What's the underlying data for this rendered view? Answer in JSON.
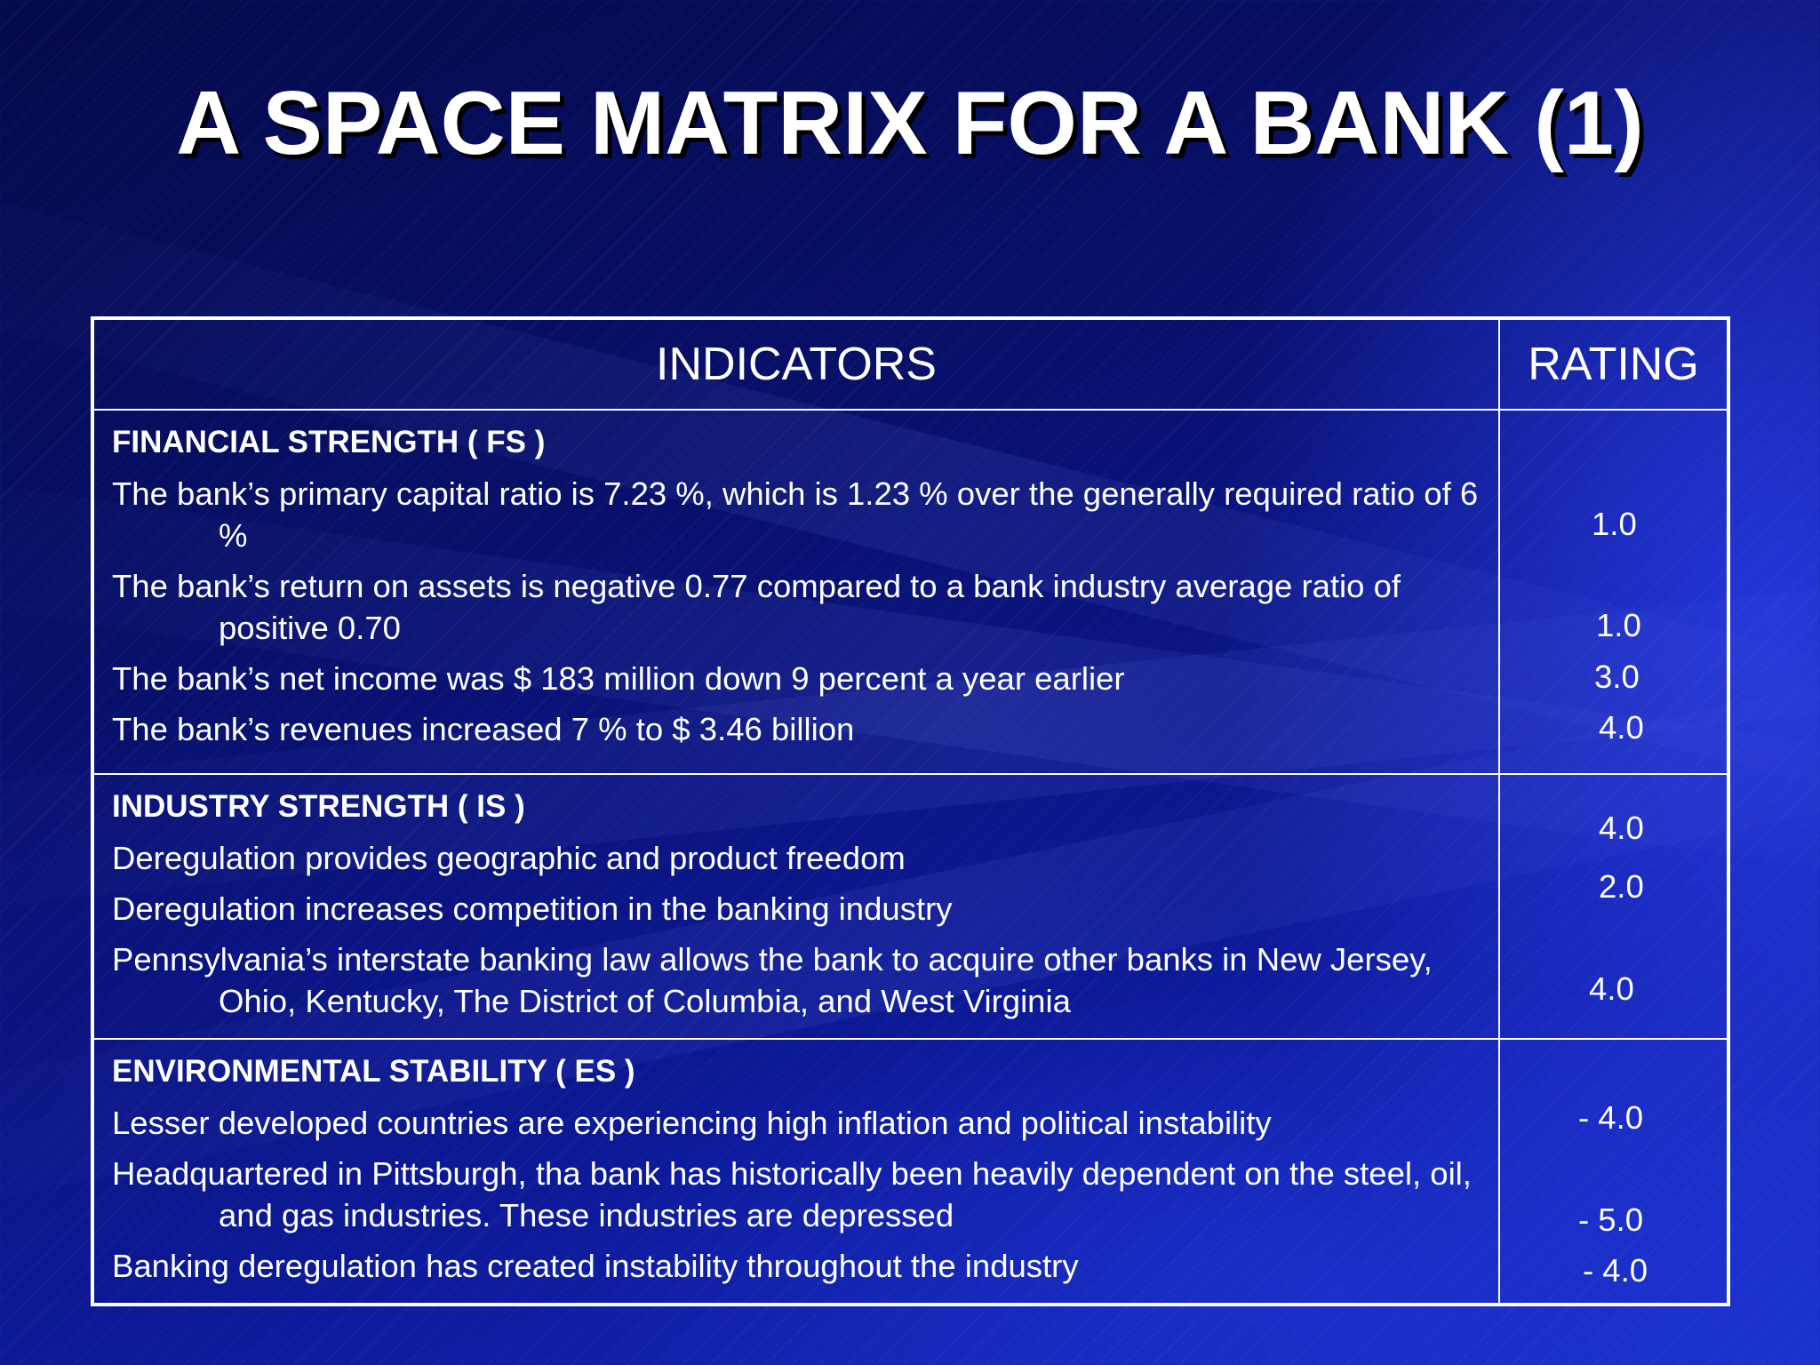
{
  "slide": {
    "title": "A SPACE MATRIX FOR A BANK (1)",
    "colors": {
      "background": "#0a1480",
      "text": "#ffffff",
      "border": "#ffffff"
    }
  },
  "table": {
    "header": {
      "indicators": "INDICATORS",
      "rating": "RATING"
    },
    "sections": [
      {
        "title": "FINANCIAL  STRENGTH ( FS )",
        "items": [
          "The bank’s primary capital ratio is 7.23 %, which is 1.23 % over the generally required ratio of 6 %",
          "The bank’s return on assets is negative 0.77  compared to a bank industry average ratio of positive 0.70",
          "The bank’s net income was $ 183 million down 9 percent a year earlier",
          "The bank’s revenues increased 7 % to  $ 3.46 billion"
        ],
        "ratings": [
          "1.0",
          "1.0",
          "3.0",
          "4.0"
        ]
      },
      {
        "title": "INDUSTRY  STRENGTH  ( IS )",
        "items": [
          "Deregulation provides geographic and product freedom",
          "Deregulation increases competition in the banking industry",
          "Pennsylvania’s interstate banking law allows the bank to acquire other banks in New Jersey, Ohio, Kentucky, The District of Columbia, and West Virginia"
        ],
        "ratings": [
          "4.0",
          "2.0",
          "4.0"
        ]
      },
      {
        "title": "ENVIRONMENTAL  STABILITY  ( ES )",
        "items": [
          "Lesser developed countries are experiencing high inflation and political instability",
          "Headquartered in Pittsburgh, tha bank has historically been heavily dependent on the steel, oil, and gas industries. These industries are depressed",
          "Banking deregulation has created instability throughout the industry"
        ],
        "ratings": [
          "- 4.0",
          "- 5.0",
          "- 4.0"
        ]
      }
    ]
  }
}
